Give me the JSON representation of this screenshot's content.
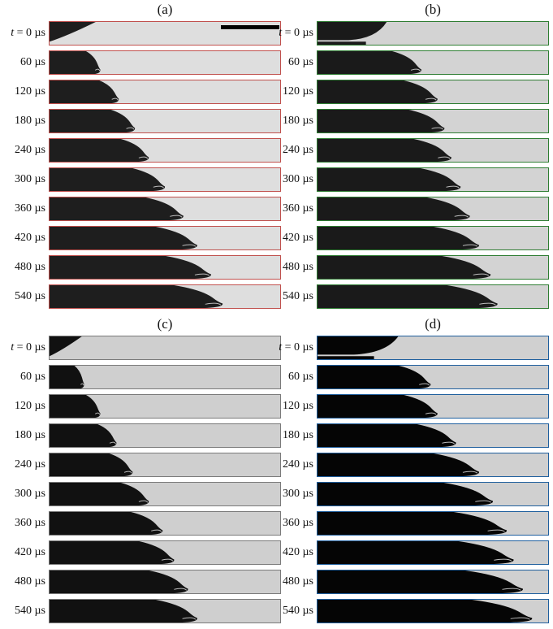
{
  "panels": [
    {
      "label": "(a)",
      "border": "#c0504d",
      "bg": "#dedede",
      "drop": "#1e1e1e",
      "base": "#2a2a2a",
      "cap": true,
      "scale_bar": true,
      "fronts": [
        0.2,
        0.22,
        0.3,
        0.37,
        0.43,
        0.5,
        0.58,
        0.64,
        0.7,
        0.75
      ]
    },
    {
      "label": "(b)",
      "border": "#2e7d32",
      "bg": "#d3d3d3",
      "drop": "#1a1a1a",
      "base": "#1a1a1a",
      "cap": true,
      "scale_bar": false,
      "fronts": [
        0.3,
        0.45,
        0.52,
        0.55,
        0.58,
        0.62,
        0.66,
        0.7,
        0.75,
        0.78
      ]
    },
    {
      "label": "(c)",
      "border": "#7a7a7a",
      "bg": "#cfcfcf",
      "drop": "#111111",
      "base": "#111111",
      "cap": true,
      "scale_bar": false,
      "fronts": [
        0.14,
        0.15,
        0.22,
        0.29,
        0.36,
        0.43,
        0.49,
        0.54,
        0.6,
        0.64
      ]
    },
    {
      "label": "(d)",
      "border": "#1f5f9e",
      "bg": "#d0d0d0",
      "drop": "#050505",
      "base": "#050505",
      "cap": true,
      "scale_bar": false,
      "fronts": [
        0.35,
        0.49,
        0.52,
        0.6,
        0.7,
        0.76,
        0.82,
        0.85,
        0.89,
        0.93
      ]
    }
  ],
  "time_labels": [
    "t = 0 µs",
    "60 µs",
    "120 µs",
    "180 µs",
    "240 µs",
    "300 µs",
    "360 µs",
    "420 µs",
    "480 µs",
    "540 µs"
  ]
}
